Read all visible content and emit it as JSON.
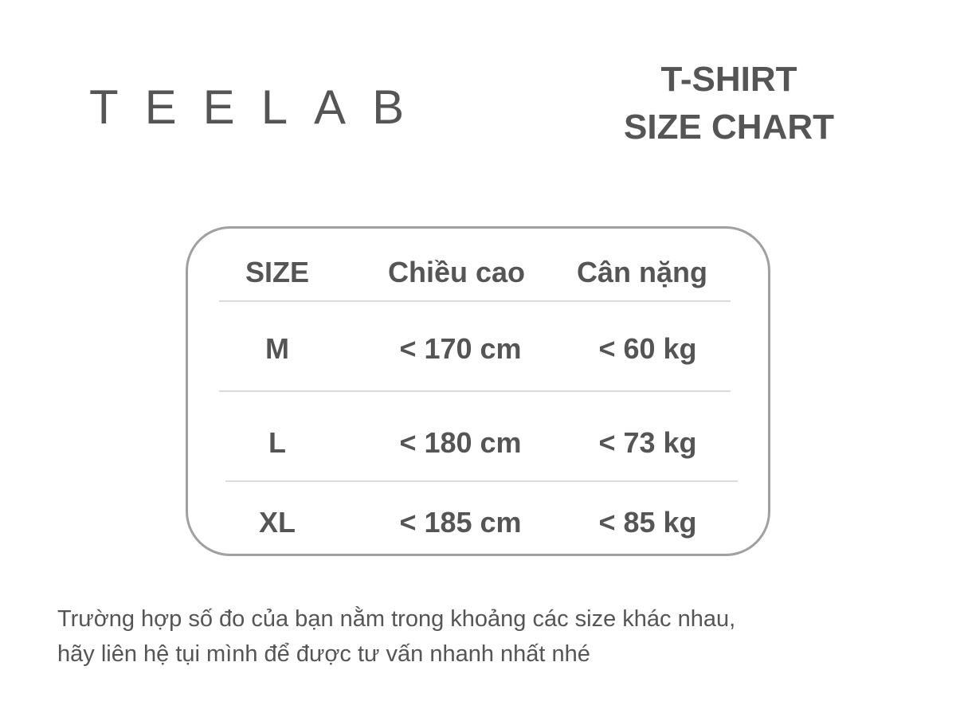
{
  "brand": "TEELAB",
  "title": {
    "line1": "T-SHIRT",
    "line2": "SIZE CHART"
  },
  "table": {
    "headers": [
      "SIZE",
      "Chiều cao",
      "Cân nặng"
    ],
    "rows": [
      {
        "size": "M",
        "height": "< 170 cm",
        "weight": "< 60 kg"
      },
      {
        "size": "L",
        "height": "< 180 cm",
        "weight": "< 73 kg"
      },
      {
        "size": "XL",
        "height": "< 185 cm",
        "weight": "< 85 kg"
      }
    ]
  },
  "note": {
    "line1": "Trường hợp số đo của bạn nằm trong khoảng các size khác nhau,",
    "line2": "hãy liên hệ tụi mình để được tư vấn nhanh nhất nhé"
  },
  "colors": {
    "text": "#555555",
    "border": "#a0a0a0",
    "divider": "#dcdcdc"
  }
}
